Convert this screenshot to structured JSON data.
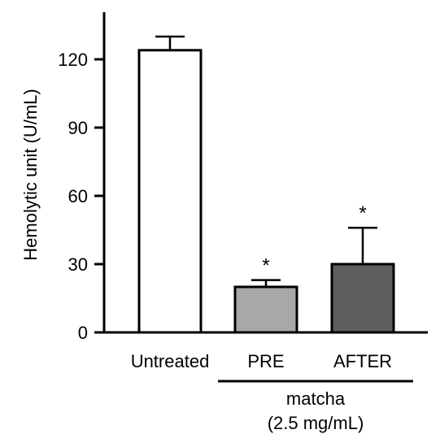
{
  "chart_data": {
    "type": "bar",
    "title": "",
    "xlabel": "",
    "ylabel": "Hemolytic unit (U/mL)",
    "ylim": [
      0,
      135
    ],
    "yticks": [
      0,
      30,
      60,
      90,
      120
    ],
    "categories": [
      "Untreated",
      "PRE",
      "AFTER"
    ],
    "values": [
      124,
      20,
      30
    ],
    "errors": [
      6,
      3,
      16
    ],
    "significance": [
      "",
      "*",
      "*"
    ],
    "bar_colors": [
      "#ffffff",
      "#a8a8aa",
      "#5e5e60"
    ],
    "group_label": {
      "line1": "matcha",
      "line2": "(2.5 mg/mL)",
      "spans": [
        "PRE",
        "AFTER"
      ]
    },
    "grid": false,
    "legend": "none"
  }
}
